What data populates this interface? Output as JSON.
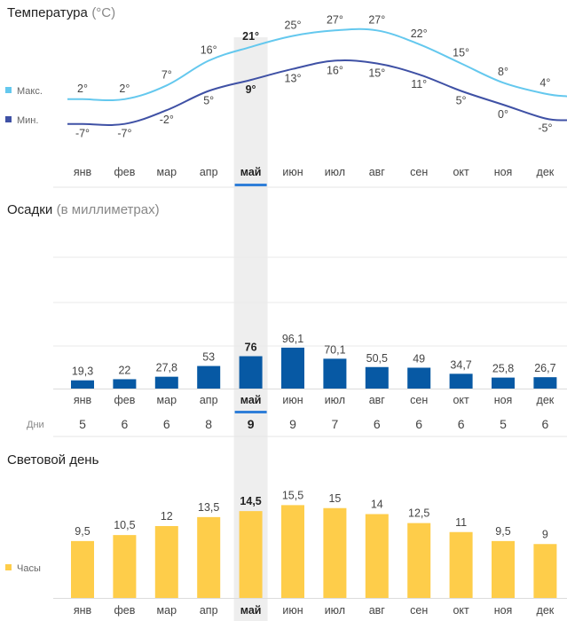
{
  "selected_index": 4,
  "colors": {
    "temp_max": "#64c8ee",
    "temp_min": "#3f51a5",
    "precip": "#0759a4",
    "daylight": "#fecd4a",
    "highlight": "#eeeeee",
    "selection": "#2f7ed8",
    "grid": "#eaeaea"
  },
  "chart_data": [
    {
      "type": "line",
      "title": "Температура",
      "unit": "(°C)",
      "categories": [
        "янв",
        "фев",
        "мар",
        "апр",
        "май",
        "июн",
        "июл",
        "авг",
        "сен",
        "окт",
        "ноя",
        "дек"
      ],
      "series": [
        {
          "name": "Макс.",
          "values": [
            2,
            2,
            7,
            16,
            21,
            25,
            27,
            27,
            22,
            15,
            8,
            4
          ],
          "labels": [
            "2°",
            "2°",
            "7°",
            "16°",
            "21°",
            "25°",
            "27°",
            "27°",
            "22°",
            "15°",
            "8°",
            "4°"
          ]
        },
        {
          "name": "Мин.",
          "values": [
            -7,
            -7,
            -2,
            5,
            9,
            13,
            16,
            15,
            11,
            5,
            0,
            -5
          ],
          "labels": [
            "-7°",
            "-7°",
            "-2°",
            "5°",
            "9°",
            "13°",
            "16°",
            "15°",
            "11°",
            "5°",
            "0°",
            "-5°"
          ]
        }
      ]
    },
    {
      "type": "bar",
      "title": "Осадки",
      "unit": "(в миллиметрах)",
      "categories": [
        "янв",
        "фев",
        "мар",
        "апр",
        "май",
        "июн",
        "июл",
        "авг",
        "сен",
        "окт",
        "ноя",
        "дек"
      ],
      "values": [
        19.3,
        22,
        27.8,
        53,
        76,
        96.1,
        70.1,
        50.5,
        49,
        34.7,
        25.8,
        26.7
      ],
      "labels": [
        "19,3",
        "22",
        "27,8",
        "53",
        "76",
        "96,1",
        "70,1",
        "50,5",
        "49",
        "34,7",
        "25,8",
        "26,7"
      ],
      "days_label": "Дни",
      "days": [
        "5",
        "6",
        "6",
        "8",
        "9",
        "9",
        "7",
        "6",
        "6",
        "6",
        "5",
        "6"
      ]
    },
    {
      "type": "bar",
      "title": "Световой день",
      "legend": "Часы",
      "categories": [
        "янв",
        "фев",
        "мар",
        "апр",
        "май",
        "июн",
        "июл",
        "авг",
        "сен",
        "окт",
        "ноя",
        "дек"
      ],
      "values": [
        9.5,
        10.5,
        12,
        13.5,
        14.5,
        15.5,
        15,
        14,
        12.5,
        11,
        9.5,
        9
      ],
      "labels": [
        "9,5",
        "10,5",
        "12",
        "13,5",
        "14,5",
        "15,5",
        "15",
        "14",
        "12,5",
        "11",
        "9,5",
        "9"
      ]
    }
  ]
}
